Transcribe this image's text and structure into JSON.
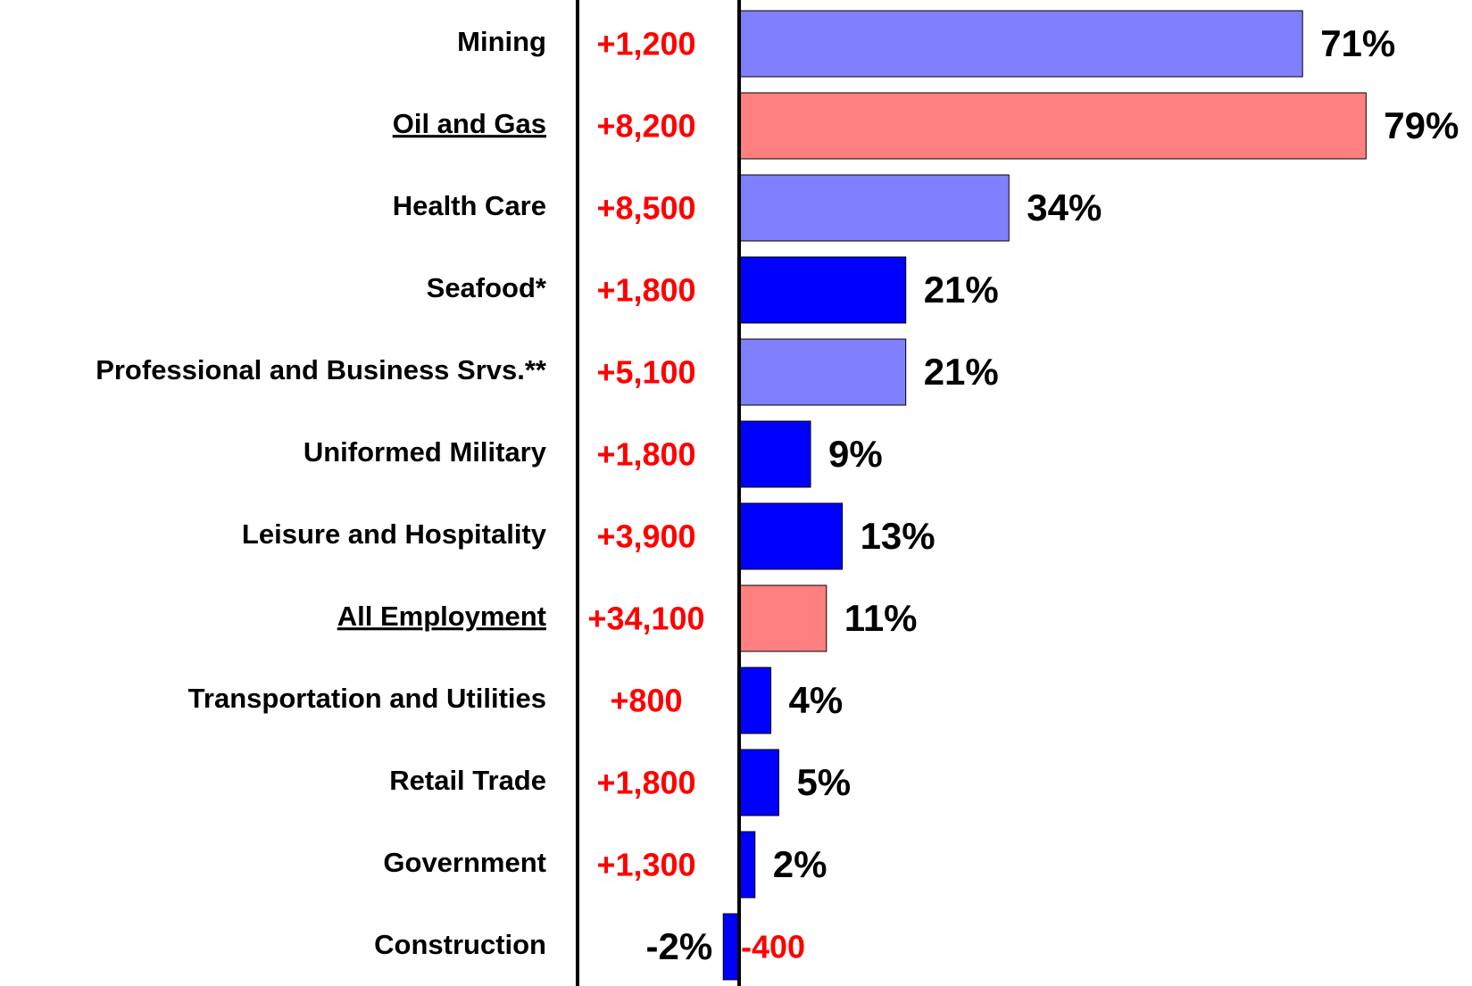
{
  "chart_data": {
    "type": "bar",
    "categories": [
      "Mining",
      "Oil and Gas",
      "Health Care",
      "Seafood*",
      "Professional and Business Srvs.**",
      "Uniformed Military",
      "Leisure and Hospitality",
      "All Employment",
      "Transportation and Utilities",
      "Retail Trade",
      "Government",
      "Construction"
    ],
    "values": [
      71,
      79,
      34,
      21,
      21,
      9,
      13,
      11,
      4,
      5,
      2,
      -2
    ],
    "value_labels": [
      "71%",
      "79%",
      "34%",
      "21%",
      "21%",
      "9%",
      "13%",
      "11%",
      "4%",
      "5%",
      "2%",
      "-2%"
    ],
    "changes": [
      1200,
      8200,
      8500,
      1800,
      5100,
      1800,
      3900,
      34100,
      800,
      1800,
      1300,
      -400
    ],
    "change_labels": [
      "+1,200",
      "+8,200",
      "+8,500",
      "+1,800",
      "+5,100",
      "+1,800",
      "+3,900",
      "+34,100",
      "+800",
      "+1,800",
      "+1,300",
      "-400"
    ],
    "colors": [
      "#8080ff",
      "#ff8080",
      "#8080ff",
      "#0000ff",
      "#8080ff",
      "#0000ff",
      "#0000ff",
      "#ff8080",
      "#0000ff",
      "#0000ff",
      "#0000ff",
      "#0000ff"
    ],
    "underlined": [
      false,
      true,
      false,
      false,
      false,
      false,
      false,
      true,
      false,
      false,
      false,
      false
    ],
    "change_color": "#ff0000"
  }
}
